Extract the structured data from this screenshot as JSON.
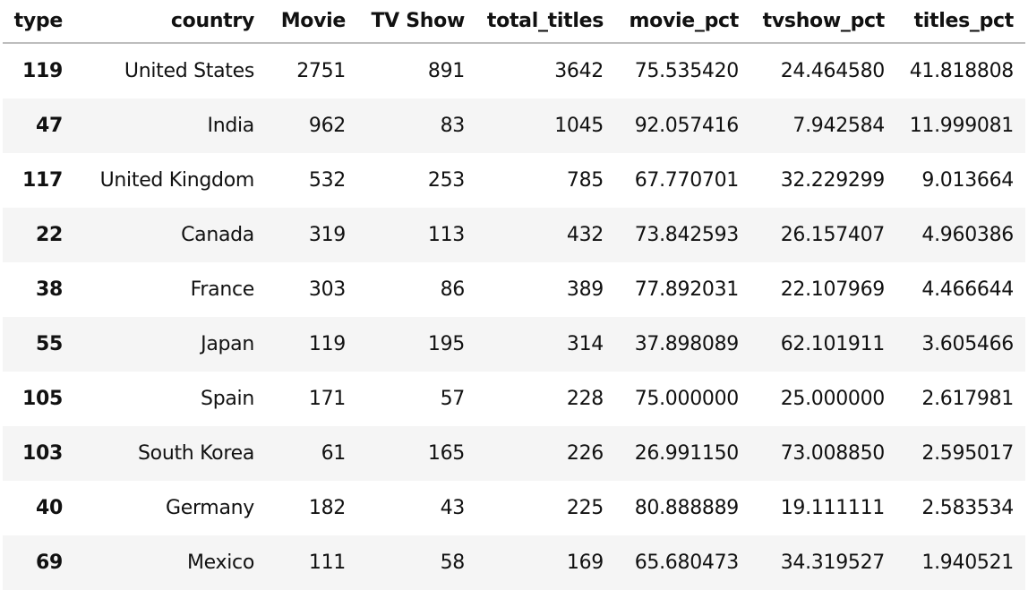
{
  "columns": [
    "type",
    "country",
    "Movie",
    "TV Show",
    "total_titles",
    "movie_pct",
    "tvshow_pct",
    "titles_pct"
  ],
  "rows": [
    [
      "119",
      "United States",
      "2751",
      "891",
      "3642",
      "75.535420",
      "24.464580",
      "41.818808"
    ],
    [
      "47",
      "India",
      "962",
      "83",
      "1045",
      "92.057416",
      "7.942584",
      "11.999081"
    ],
    [
      "117",
      "United Kingdom",
      "532",
      "253",
      "785",
      "67.770701",
      "32.229299",
      "9.013664"
    ],
    [
      "22",
      "Canada",
      "319",
      "113",
      "432",
      "73.842593",
      "26.157407",
      "4.960386"
    ],
    [
      "38",
      "France",
      "303",
      "86",
      "389",
      "77.892031",
      "22.107969",
      "4.466644"
    ],
    [
      "55",
      "Japan",
      "119",
      "195",
      "314",
      "37.898089",
      "62.101911",
      "3.605466"
    ],
    [
      "105",
      "Spain",
      "171",
      "57",
      "228",
      "75.000000",
      "25.000000",
      "2.617981"
    ],
    [
      "103",
      "South Korea",
      "61",
      "165",
      "226",
      "26.991150",
      "73.008850",
      "2.595017"
    ],
    [
      "40",
      "Germany",
      "182",
      "43",
      "225",
      "80.888889",
      "19.111111",
      "2.583534"
    ],
    [
      "69",
      "Mexico",
      "111",
      "58",
      "169",
      "65.680473",
      "34.319527",
      "1.940521"
    ]
  ]
}
